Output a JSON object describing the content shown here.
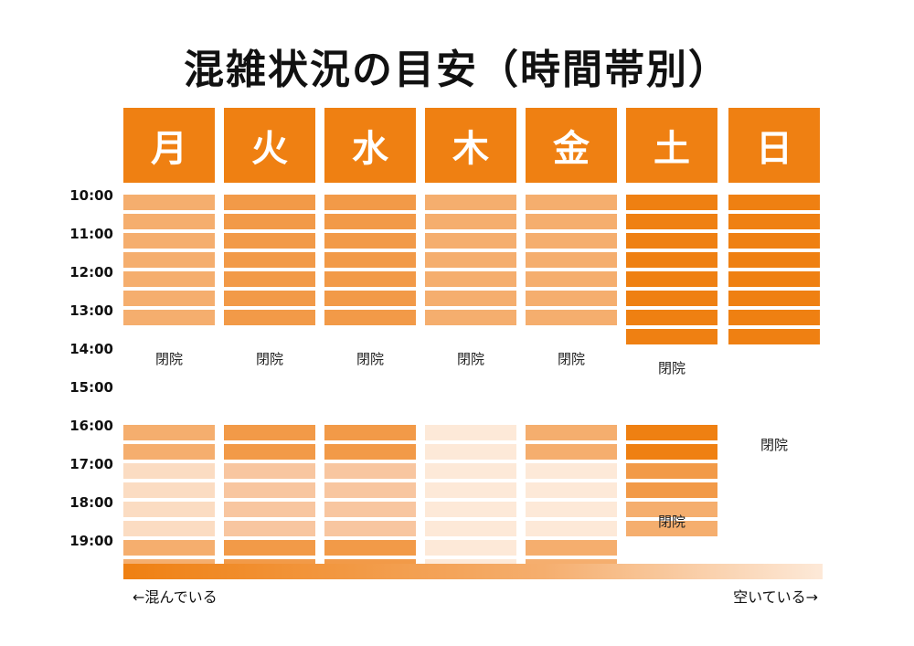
{
  "title": "混雑状況の目安（時間帯別）",
  "days": [
    "月",
    "火",
    "水",
    "木",
    "金",
    "土",
    "日"
  ],
  "times": [
    "10:00",
    "11:00",
    "12:00",
    "13:00",
    "14:00",
    "15:00",
    "16:00",
    "17:00",
    "18:00",
    "19:00"
  ],
  "colors": {
    "header": "#ef8012",
    "level5": "#ef8012",
    "level4": "#f29a48",
    "level3": "#f5ae6e",
    "level2": "#f8c6a0",
    "level1": "#fbdcc2",
    "level0": "#fde9d8"
  },
  "closed_text": "閉院",
  "schedule": [
    {
      "day": "月",
      "slots": [
        3,
        3,
        3,
        3,
        3,
        3,
        3,
        null,
        null,
        null,
        null,
        null,
        3,
        3,
        1,
        1,
        1,
        1,
        3,
        3
      ],
      "closed_labels": [
        "閉院"
      ]
    },
    {
      "day": "火",
      "slots": [
        4,
        4,
        4,
        4,
        4,
        4,
        4,
        null,
        null,
        null,
        null,
        null,
        4,
        4,
        2,
        2,
        2,
        2,
        4,
        4
      ],
      "closed_labels": [
        "閉院"
      ]
    },
    {
      "day": "水",
      "slots": [
        4,
        4,
        4,
        4,
        4,
        4,
        4,
        null,
        null,
        null,
        null,
        null,
        4,
        4,
        2,
        2,
        2,
        2,
        4,
        4
      ],
      "closed_labels": [
        "閉院"
      ]
    },
    {
      "day": "木",
      "slots": [
        3,
        3,
        3,
        3,
        3,
        3,
        3,
        null,
        null,
        null,
        null,
        null,
        0,
        0,
        0,
        0,
        0,
        0,
        0,
        0
      ],
      "closed_labels": [
        "閉院"
      ]
    },
    {
      "day": "金",
      "slots": [
        3,
        3,
        3,
        3,
        3,
        3,
        3,
        null,
        null,
        null,
        null,
        null,
        3,
        3,
        0,
        0,
        0,
        0,
        3,
        3
      ],
      "closed_labels": [
        "閉院"
      ]
    },
    {
      "day": "土",
      "slots": [
        5,
        5,
        5,
        5,
        5,
        5,
        5,
        5,
        null,
        null,
        null,
        null,
        5,
        5,
        4,
        4,
        3,
        3,
        null,
        null
      ],
      "closed_labels": [
        "閉院",
        "閉院"
      ]
    },
    {
      "day": "日",
      "slots": [
        5,
        5,
        5,
        5,
        5,
        5,
        5,
        5,
        null,
        null,
        null,
        null,
        null,
        null,
        null,
        null,
        null,
        null,
        null,
        null
      ],
      "closed_labels": [
        "閉院"
      ]
    }
  ],
  "legend": {
    "left": "←混んでいる",
    "right": "空いている→"
  }
}
